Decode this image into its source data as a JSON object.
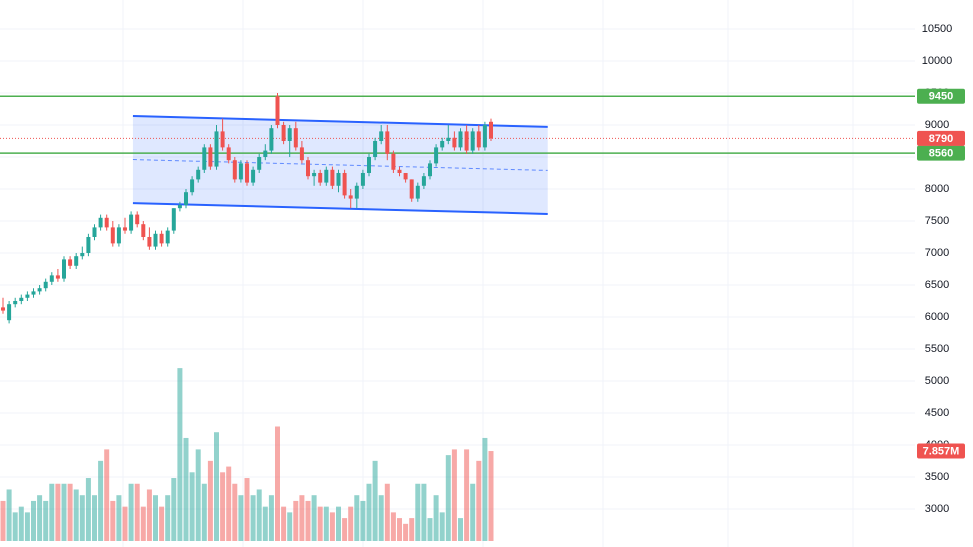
{
  "chart_data": {
    "type": "candlestick",
    "ylim": [
      2406,
      10953
    ],
    "yticks": [
      3000,
      3500,
      4000,
      4500,
      5000,
      5500,
      6000,
      6500,
      7000,
      7500,
      8000,
      8500,
      9000,
      9500,
      10000,
      10500
    ],
    "vlim": [
      0,
      20
    ],
    "up_color": "#26a69a",
    "down_color": "#ef5350",
    "grid": true,
    "candles": [
      [
        6150,
        6300,
        6050,
        6100
      ],
      [
        5950,
        6250,
        5900,
        6200
      ],
      [
        6200,
        6300,
        6150,
        6250
      ],
      [
        6250,
        6350,
        6200,
        6300
      ],
      [
        6300,
        6400,
        6250,
        6350
      ],
      [
        6350,
        6450,
        6300,
        6400
      ],
      [
        6400,
        6500,
        6350,
        6450
      ],
      [
        6450,
        6600,
        6400,
        6550
      ],
      [
        6550,
        6700,
        6500,
        6650
      ],
      [
        6650,
        6750,
        6550,
        6600
      ],
      [
        6600,
        6950,
        6550,
        6900
      ],
      [
        6900,
        6950,
        6750,
        6800
      ],
      [
        6800,
        7000,
        6750,
        6950
      ],
      [
        6950,
        7100,
        6900,
        7000
      ],
      [
        7000,
        7300,
        6950,
        7250
      ],
      [
        7250,
        7450,
        7200,
        7400
      ],
      [
        7400,
        7600,
        7350,
        7550
      ],
      [
        7550,
        7600,
        7350,
        7400
      ],
      [
        7400,
        7500,
        7100,
        7150
      ],
      [
        7150,
        7450,
        7100,
        7400
      ],
      [
        7400,
        7550,
        7300,
        7350
      ],
      [
        7350,
        7650,
        7300,
        7600
      ],
      [
        7600,
        7650,
        7400,
        7450
      ],
      [
        7450,
        7500,
        7200,
        7250
      ],
      [
        7250,
        7400,
        7050,
        7100
      ],
      [
        7100,
        7350,
        7050,
        7300
      ],
      [
        7300,
        7350,
        7100,
        7150
      ],
      [
        7150,
        7400,
        7100,
        7350
      ],
      [
        7350,
        7700,
        7300,
        7700
      ],
      [
        7700,
        7800,
        7650,
        7750
      ],
      [
        7750,
        8000,
        7700,
        7950
      ],
      [
        7950,
        8200,
        7900,
        8150
      ],
      [
        8150,
        8350,
        8100,
        8300
      ],
      [
        8300,
        8700,
        8250,
        8650
      ],
      [
        8650,
        8700,
        8300,
        8350
      ],
      [
        8350,
        9000,
        8300,
        8900
      ],
      [
        8900,
        9100,
        8600,
        8650
      ],
      [
        8650,
        8700,
        8400,
        8450
      ],
      [
        8450,
        8500,
        8100,
        8150
      ],
      [
        8150,
        8450,
        8100,
        8400
      ],
      [
        8400,
        8450,
        8050,
        8100
      ],
      [
        8100,
        8350,
        8050,
        8300
      ],
      [
        8300,
        8550,
        8250,
        8500
      ],
      [
        8500,
        8700,
        8450,
        8600
      ],
      [
        8600,
        9000,
        8550,
        8950
      ],
      [
        9450,
        9500,
        8950,
        9000
      ],
      [
        9000,
        9050,
        8700,
        8750
      ],
      [
        8750,
        9000,
        8500,
        8950
      ],
      [
        8950,
        9050,
        8600,
        8650
      ],
      [
        8650,
        8750,
        8400,
        8450
      ],
      [
        8450,
        8500,
        8150,
        8200
      ],
      [
        8200,
        8300,
        8050,
        8250
      ],
      [
        8250,
        8300,
        8050,
        8100
      ],
      [
        8100,
        8350,
        8050,
        8300
      ],
      [
        8300,
        8350,
        8000,
        8050
      ],
      [
        8050,
        8300,
        7950,
        8250
      ],
      [
        8250,
        8300,
        7850,
        7900
      ],
      [
        7900,
        8000,
        7700,
        7850
      ],
      [
        7850,
        8100,
        7700,
        8050
      ],
      [
        8050,
        8300,
        8000,
        8250
      ],
      [
        8250,
        8550,
        8200,
        8500
      ],
      [
        8500,
        8800,
        8450,
        8750
      ],
      [
        8750,
        9000,
        8700,
        8900
      ],
      [
        8900,
        9000,
        8450,
        8550
      ],
      [
        8550,
        8600,
        8250,
        8300
      ],
      [
        8300,
        8350,
        8200,
        8250
      ],
      [
        8250,
        8250,
        8100,
        8150
      ],
      [
        8150,
        8150,
        7800,
        7850
      ],
      [
        7850,
        8100,
        7800,
        8050
      ],
      [
        8050,
        8250,
        8000,
        8200
      ],
      [
        8200,
        8450,
        8150,
        8400
      ],
      [
        8400,
        8700,
        8350,
        8650
      ],
      [
        8650,
        8800,
        8600,
        8750
      ],
      [
        8750,
        9000,
        8700,
        8800
      ],
      [
        8800,
        8900,
        8600,
        8650
      ],
      [
        8650,
        8950,
        8600,
        8900
      ],
      [
        8900,
        9000,
        8550,
        8600
      ],
      [
        8600,
        8950,
        8550,
        8900
      ],
      [
        8900,
        9000,
        8600,
        8650
      ],
      [
        8650,
        9050,
        8600,
        9000
      ],
      [
        9050,
        9100,
        8750,
        8790
      ]
    ],
    "volumes": [
      3.5,
      4.5,
      2.5,
      3,
      2.5,
      3.5,
      4,
      3.5,
      5,
      5,
      5,
      5,
      4.5,
      4,
      5.5,
      4,
      7,
      8,
      3.5,
      4,
      3,
      5,
      5,
      3,
      4.5,
      4,
      3,
      4,
      5.5,
      15.1,
      9,
      6,
      8,
      5,
      7,
      9.5,
      6,
      6.5,
      5,
      4,
      5.5,
      4,
      4.5,
      3,
      4,
      10,
      3,
      2.5,
      3.5,
      4,
      3.5,
      4,
      3,
      3,
      2.5,
      3,
      2,
      3,
      4,
      3.5,
      5,
      7,
      4,
      5,
      2.5,
      2,
      1.5,
      2,
      5,
      5,
      2,
      4,
      2.5,
      7.5,
      8,
      2,
      8,
      5,
      7,
      9,
      7.857
    ],
    "volume_tag": {
      "value": 7.857,
      "label": "7.857M"
    },
    "hlines": [
      {
        "value": 9450,
        "color": "#4caf50"
      },
      {
        "value": 8560,
        "color": "#4caf50"
      }
    ],
    "last_price": 8790,
    "channel": {
      "x": [
        21.3,
        89.3
      ],
      "upper": [
        9140,
        8970
      ],
      "lower": [
        7780,
        7610
      ],
      "color": "#2962ff"
    }
  }
}
